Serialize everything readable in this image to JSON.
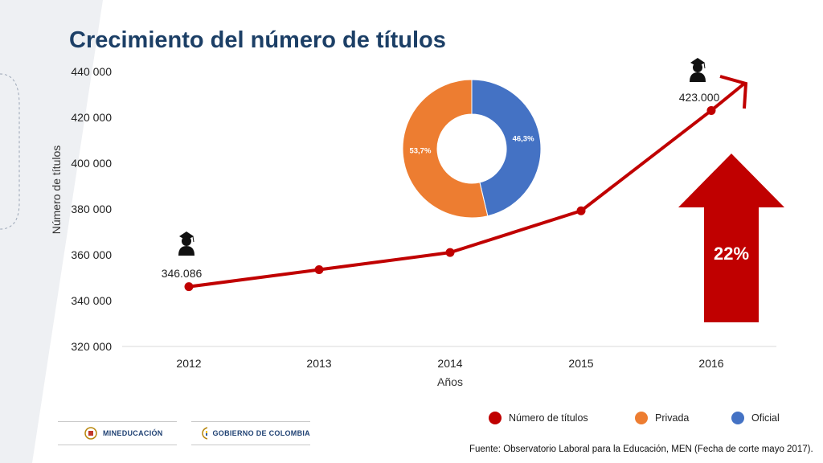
{
  "slide": {
    "title": "Crecimiento del número de títulos",
    "source_prefix": "Fuente: Observatorio Laboral para la Educación",
    "source_suffix": ", MEN (Fecha de corte mayo 2017).",
    "logos": [
      {
        "label": "MINEDUCACIÓN"
      },
      {
        "label": "GOBIERNO DE COLOMBIA"
      }
    ]
  },
  "colors": {
    "title": "#1c3f66",
    "line": "#c00000",
    "privada": "#ed7d31",
    "oficial": "#4472c4",
    "arrow": "#c00000"
  },
  "chart_data": [
    {
      "type": "line",
      "title": "",
      "xlabel": "Años",
      "ylabel": "Número de títulos",
      "categories": [
        "2012",
        "2013",
        "2014",
        "2015",
        "2016"
      ],
      "series": [
        {
          "name": "Número de títulos",
          "values": [
            346086,
            353500,
            361000,
            379200,
            423000
          ]
        }
      ],
      "ylim": [
        320000,
        440000
      ],
      "yticks": [
        "320 000",
        "340 000",
        "360 000",
        "380 000",
        "400 000",
        "420 000",
        "440 000"
      ],
      "point_labels": {
        "first": "346.086",
        "last": "423.000"
      },
      "growth_label": "22%",
      "grid": false
    },
    {
      "type": "pie",
      "donut": true,
      "slices": [
        {
          "name": "Oficial",
          "value": 46.3,
          "label": "46,3%"
        },
        {
          "name": "Privada",
          "value": 53.7,
          "label": "53,7%"
        }
      ]
    }
  ],
  "legend": [
    {
      "name": "Número de títulos",
      "color": "#c00000"
    },
    {
      "name": "Privada",
      "color": "#ed7d31"
    },
    {
      "name": "Oficial",
      "color": "#4472c4"
    }
  ]
}
